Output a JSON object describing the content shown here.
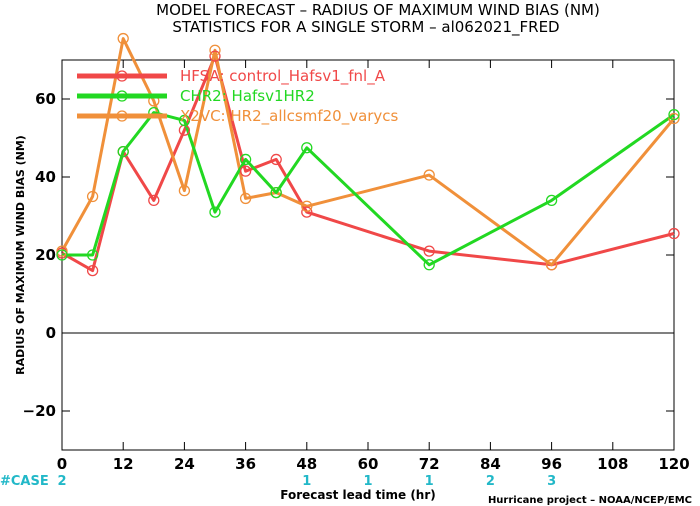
{
  "title": {
    "line1": "MODEL FORECAST – RADIUS OF MAXIMUM WIND BIAS (NM)",
    "line2": "STATISTICS FOR A SINGLE STORM – al062021_FRED"
  },
  "case_label": "#CASE",
  "credit": "Hurricane project – NOAA/NCEP/EMC",
  "colors": {
    "HFSA": "#f04848",
    "CHR2": "#22d822",
    "X2VC": "#f0903a",
    "case_counts": "#22b8c8",
    "zero_line": "#000000"
  },
  "chart_data": {
    "type": "line",
    "title": "MODEL FORECAST – RADIUS OF MAXIMUM WIND BIAS (NM)",
    "subtitle": "STATISTICS FOR A SINGLE STORM – al062021_FRED",
    "xlabel": "Forecast lead time (hr)",
    "ylabel": "RADIUS OF MAXIMUM WIND BIAS (NM)",
    "xlim": [
      0,
      120
    ],
    "ylim": [
      -30,
      70
    ],
    "xticks": [
      0,
      12,
      24,
      36,
      48,
      60,
      72,
      84,
      96,
      108,
      120
    ],
    "yticks": [
      -20,
      0,
      20,
      40,
      60
    ],
    "ytick_labels": [
      "−20",
      "0",
      "20",
      "40",
      "60"
    ],
    "grid": false,
    "legend_position": "top-left",
    "series": [
      {
        "name": "HFSA",
        "label": "control_Hafsv1_fnl_A",
        "x": [
          0,
          6,
          12,
          18,
          24,
          30,
          36,
          42,
          48,
          72,
          96,
          120
        ],
        "y": [
          20.5,
          16,
          46.5,
          34,
          52,
          71,
          41.5,
          44.5,
          31,
          21,
          17.5,
          25.5
        ]
      },
      {
        "name": "CHR2",
        "label": "Hafsv1HR2",
        "x": [
          0,
          6,
          12,
          18,
          24,
          30,
          36,
          42,
          48,
          72,
          96,
          120
        ],
        "y": [
          20,
          20,
          46.5,
          56.5,
          54.5,
          31,
          44.5,
          36,
          47.5,
          17.5,
          34,
          56
        ]
      },
      {
        "name": "X2VC",
        "label": "HR2_allcsmf20_varycs",
        "x": [
          0,
          6,
          12,
          18,
          24,
          30,
          36,
          42,
          48,
          72,
          96,
          120
        ],
        "y": [
          21,
          35,
          75.5,
          59.5,
          36.5,
          72.5,
          34.5,
          36,
          32.5,
          40.5,
          17.5,
          55
        ]
      }
    ],
    "case_counts": {
      "x": [
        0,
        48,
        60,
        72,
        84,
        96
      ],
      "values": [
        "2",
        "1",
        "1",
        "1",
        "2",
        "3"
      ]
    }
  }
}
